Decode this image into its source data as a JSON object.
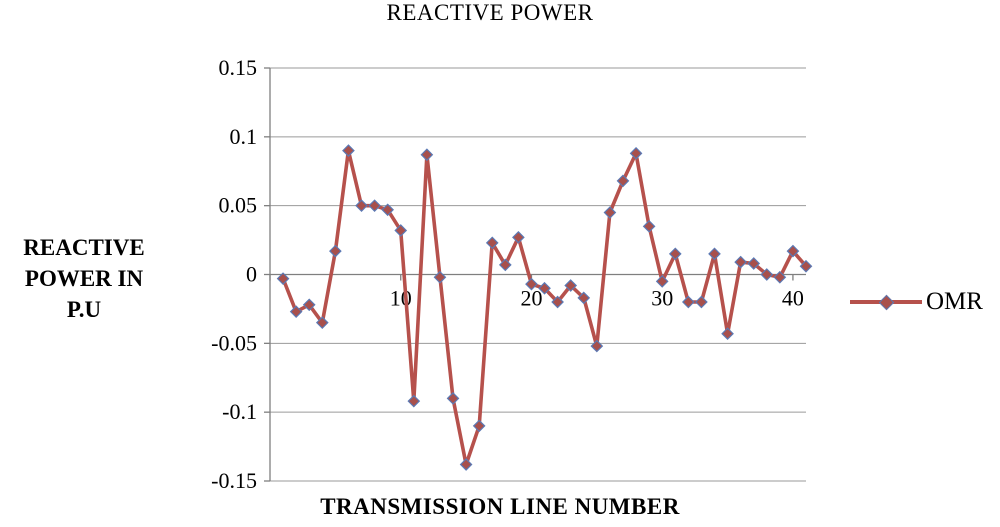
{
  "chart_data": {
    "type": "line",
    "title": "REACTIVE POWER",
    "xlabel": "TRANSMISSION LINE NUMBER",
    "ylabel": "REACTIVE\nPOWER IN\nP.U",
    "legend": [
      {
        "label": "OMR"
      }
    ],
    "legend_position": "right",
    "grid": "horizontal",
    "ylim": [
      -0.15,
      0.15
    ],
    "xlim": [
      0,
      41
    ],
    "y_ticks": [
      0.15,
      0.1,
      0.05,
      0,
      -0.05,
      -0.1,
      -0.15
    ],
    "y_tick_labels": [
      "0.15",
      "0.1",
      "0.05",
      "0",
      "-0.05",
      "-0.1",
      "-0.15"
    ],
    "x_ticks": [
      10,
      20,
      30,
      40
    ],
    "colors": {
      "line": "#b6514c",
      "marker_fill": "#a8504c",
      "marker_stroke": "#5b79b4",
      "grid": "#9a9a9a",
      "axis": "#7f7f7f",
      "text": "#000000"
    },
    "series": [
      {
        "name": "OMR",
        "x_start": 1,
        "values": [
          -0.003,
          -0.027,
          -0.022,
          -0.035,
          0.017,
          0.09,
          0.05,
          0.05,
          0.047,
          0.032,
          -0.092,
          0.087,
          -0.002,
          -0.09,
          -0.138,
          -0.11,
          0.023,
          0.007,
          0.027,
          -0.007,
          -0.01,
          -0.02,
          -0.008,
          -0.017,
          -0.052,
          0.045,
          0.068,
          0.088,
          0.035,
          -0.005,
          0.015,
          -0.02,
          -0.02,
          0.015,
          -0.043,
          0.009,
          0.008,
          0.0,
          -0.002,
          0.017,
          0.006
        ]
      }
    ]
  }
}
